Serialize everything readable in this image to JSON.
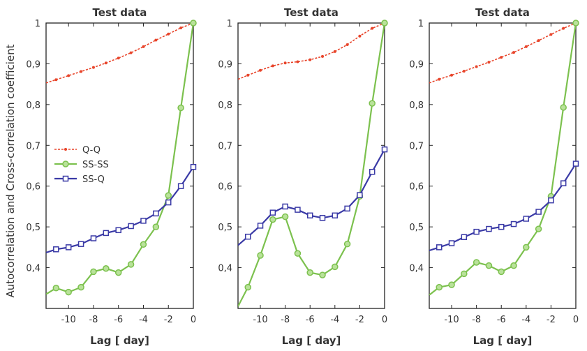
{
  "figure": {
    "ylabel": "Autocorrelation and Cross-correlation coefficient"
  },
  "chart_data": [
    {
      "type": "line",
      "title": "Test data",
      "xlabel": "Lag [ day]",
      "ylabel": "Autocorrelation and Cross-correlation coefficient",
      "xlim": [
        -11.8,
        0
      ],
      "ylim": [
        0.3,
        1
      ],
      "xticks": [
        -10,
        -8,
        -6,
        -4,
        -2,
        0
      ],
      "yticks": [
        0.4,
        0.5,
        0.6,
        0.7,
        0.8,
        0.9,
        1
      ],
      "ytick_labels": [
        "0,4",
        "0,5",
        "0,6",
        "0,7",
        "0,8",
        "0,9",
        "1"
      ],
      "grid": false,
      "legend": "center-left",
      "x": [
        -11.8,
        -11,
        -10,
        -9,
        -8,
        -7,
        -6,
        -5,
        -4,
        -3,
        -2,
        -1,
        0
      ],
      "series": [
        {
          "name": "Q-Q",
          "color": "#e8442a",
          "marker": "dot",
          "values": [
            0.853,
            0.861,
            0.871,
            0.881,
            0.891,
            0.902,
            0.914,
            0.927,
            0.942,
            0.958,
            0.973,
            0.988,
            1.0
          ]
        },
        {
          "name": "SS-SS",
          "color": "#7cc14e",
          "marker": "circle",
          "values": [
            0.335,
            0.35,
            0.34,
            0.352,
            0.39,
            0.398,
            0.388,
            0.408,
            0.457,
            0.5,
            0.577,
            0.792,
            1.0
          ]
        },
        {
          "name": "SS-Q",
          "color": "#3a3aa6",
          "marker": "square",
          "values": [
            0.437,
            0.445,
            0.45,
            0.458,
            0.472,
            0.485,
            0.492,
            0.502,
            0.515,
            0.533,
            0.56,
            0.6,
            0.647
          ]
        }
      ]
    },
    {
      "type": "line",
      "title": "Test data",
      "xlabel": "Lag [ day]",
      "xlim": [
        -11.8,
        0
      ],
      "ylim": [
        0.3,
        1
      ],
      "xticks": [
        -10,
        -8,
        -6,
        -4,
        -2,
        0
      ],
      "yticks": [
        0.4,
        0.5,
        0.6,
        0.7,
        0.8,
        0.9,
        1
      ],
      "ytick_labels": [
        "0,4",
        "0,5",
        "0,6",
        "0,7",
        "0,8",
        "0,9",
        "1"
      ],
      "grid": false,
      "x": [
        -11.8,
        -11,
        -10,
        -9,
        -8,
        -7,
        -6,
        -5,
        -4,
        -3,
        -2,
        -1,
        0
      ],
      "series": [
        {
          "name": "Q-Q",
          "color": "#e8442a",
          "marker": "dot",
          "values": [
            0.862,
            0.872,
            0.884,
            0.895,
            0.902,
            0.905,
            0.91,
            0.918,
            0.93,
            0.947,
            0.968,
            0.987,
            1.0
          ]
        },
        {
          "name": "SS-SS",
          "color": "#7cc14e",
          "marker": "circle",
          "values": [
            0.305,
            0.352,
            0.43,
            0.518,
            0.525,
            0.435,
            0.388,
            0.382,
            0.402,
            0.458,
            0.575,
            0.803,
            1.0
          ]
        },
        {
          "name": "SS-Q",
          "color": "#3a3aa6",
          "marker": "square",
          "values": [
            0.455,
            0.476,
            0.503,
            0.535,
            0.55,
            0.542,
            0.528,
            0.522,
            0.528,
            0.545,
            0.578,
            0.635,
            0.69
          ]
        }
      ]
    },
    {
      "type": "line",
      "title": "Test data",
      "xlabel": "Lag [ day]",
      "xlim": [
        -11.8,
        0
      ],
      "ylim": [
        0.3,
        1
      ],
      "xticks": [
        -10,
        -8,
        -6,
        -4,
        -2,
        0
      ],
      "yticks": [
        0.4,
        0.5,
        0.6,
        0.7,
        0.8,
        0.9,
        1
      ],
      "ytick_labels": [
        "0,4",
        "0,5",
        "0,6",
        "0,7",
        "0,8",
        "0,9",
        "1"
      ],
      "grid": false,
      "x": [
        -11.8,
        -11,
        -10,
        -9,
        -8,
        -7,
        -6,
        -5,
        -4,
        -3,
        -2,
        -1,
        0
      ],
      "series": [
        {
          "name": "Q-Q",
          "color": "#e8442a",
          "marker": "dot",
          "values": [
            0.853,
            0.862,
            0.872,
            0.882,
            0.893,
            0.904,
            0.916,
            0.928,
            0.942,
            0.957,
            0.972,
            0.987,
            1.0
          ]
        },
        {
          "name": "SS-SS",
          "color": "#7cc14e",
          "marker": "circle",
          "values": [
            0.333,
            0.352,
            0.358,
            0.385,
            0.413,
            0.405,
            0.39,
            0.405,
            0.45,
            0.495,
            0.575,
            0.793,
            1.0
          ]
        },
        {
          "name": "SS-Q",
          "color": "#3a3aa6",
          "marker": "square",
          "values": [
            0.442,
            0.45,
            0.46,
            0.475,
            0.488,
            0.495,
            0.5,
            0.507,
            0.52,
            0.537,
            0.565,
            0.607,
            0.655
          ]
        }
      ]
    }
  ]
}
